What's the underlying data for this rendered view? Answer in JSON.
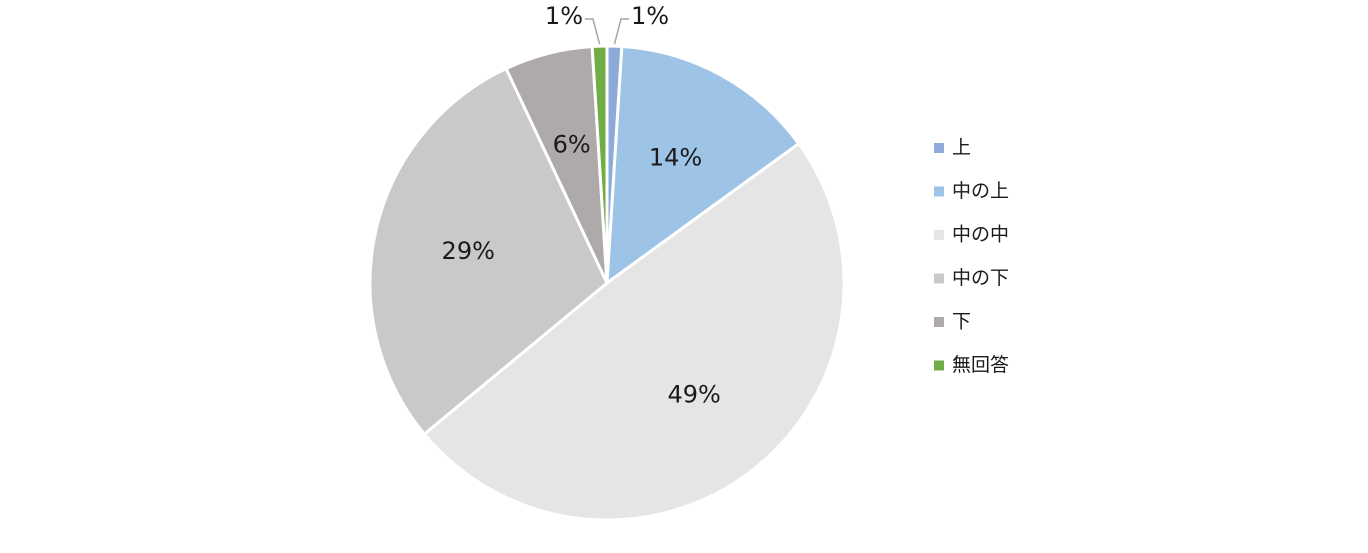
{
  "chart_data": {
    "type": "pie",
    "categories": [
      "上",
      "中の上",
      "中の中",
      "中の下",
      "下",
      "無回答"
    ],
    "values": [
      1,
      14,
      49,
      29,
      6,
      1
    ],
    "value_labels": [
      "1%",
      "14%",
      "49%",
      "29%",
      "6%",
      "1%"
    ],
    "colors": [
      "#8eaadb",
      "#9dc3e6",
      "#e5e5e5",
      "#c9c9c9",
      "#aeaaaa",
      "#70ad47"
    ],
    "legend": "right"
  }
}
